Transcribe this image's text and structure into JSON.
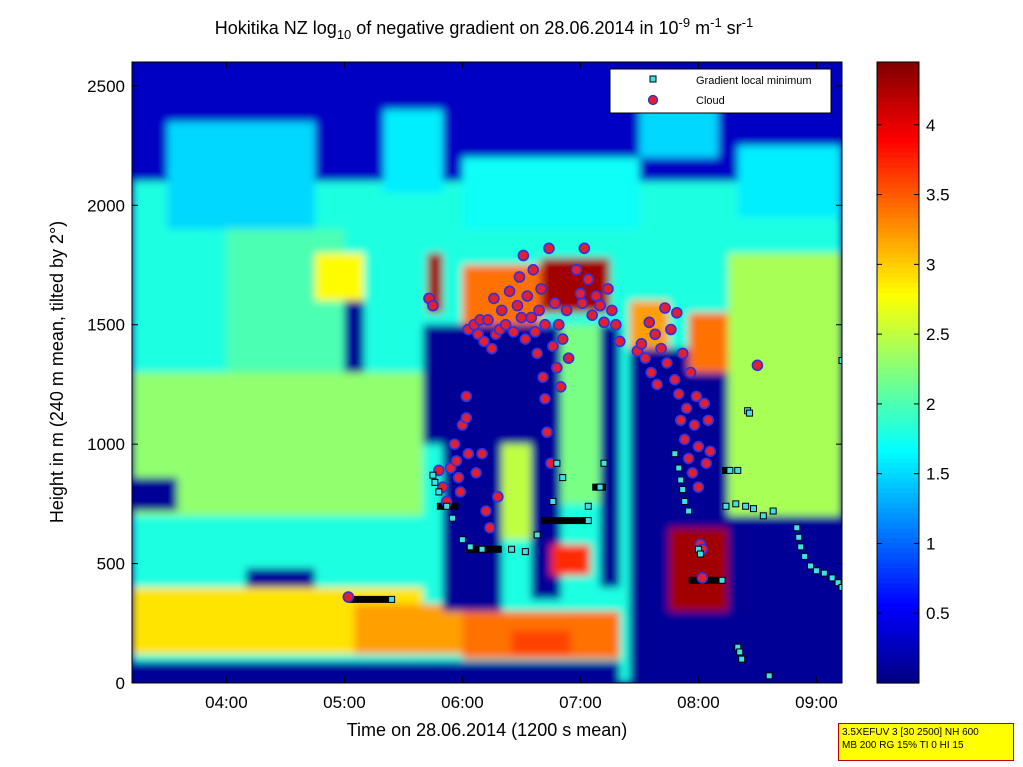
{
  "chart_data": {
    "type": "heatmap",
    "title_parts": {
      "prefix": "Hokitika NZ log",
      "log_sub": "10",
      "middle": " of negative gradient on 28.06.2014 in 10",
      "exp1": "-9",
      "unit1": " m",
      "exp2": "-1",
      "unit2": " sr",
      "exp3": "-1"
    },
    "xlabel": "Time on 28.06.2014 (1200 s mean)",
    "ylabel": "Height in m (240 m mean, tilted by 2°)",
    "x_range": [
      "03:12",
      "09:13"
    ],
    "ylim": [
      0,
      2600
    ],
    "x_ticks": [
      "04:00",
      "05:00",
      "06:00",
      "07:00",
      "08:00",
      "09:00"
    ],
    "y_ticks": [
      0,
      500,
      1000,
      1500,
      2000,
      2500
    ],
    "colorbar": {
      "ticks": [
        0.5,
        1,
        1.5,
        2,
        2.5,
        3,
        3.5,
        4
      ],
      "range": [
        0,
        4.45
      ],
      "colormap": "jet"
    },
    "legend": {
      "placement": "top-right",
      "entries": [
        {
          "label": "Gradient local minimum",
          "marker": "square",
          "color": "#40e0e8"
        },
        {
          "label": "Cloud",
          "marker": "circle",
          "color": "#e02030"
        }
      ]
    },
    "field_regions": [
      {
        "t0": "03:12",
        "t1": "09:13",
        "h0": 0,
        "h1": 2600,
        "value": 1.8
      },
      {
        "t0": "03:12",
        "t1": "09:13",
        "h0": 2100,
        "h1": 2600,
        "value": 0.3
      },
      {
        "t0": "03:30",
        "t1": "04:45",
        "h0": 1900,
        "h1": 2350,
        "value": 1.5
      },
      {
        "t0": "05:20",
        "t1": "05:50",
        "h0": 2050,
        "h1": 2400,
        "value": 1.6
      },
      {
        "t0": "06:00",
        "t1": "07:30",
        "h0": 1900,
        "h1": 2200,
        "value": 1.7
      },
      {
        "t0": "07:30",
        "t1": "08:10",
        "h0": 2200,
        "h1": 2500,
        "value": 1.5
      },
      {
        "t0": "08:20",
        "t1": "09:13",
        "h0": 1950,
        "h1": 2250,
        "value": 1.6
      },
      {
        "t0": "04:00",
        "t1": "05:00",
        "h0": 1200,
        "h1": 1900,
        "value": 2.0
      },
      {
        "t0": "03:12",
        "t1": "05:40",
        "h0": 700,
        "h1": 1300,
        "value": 2.3
      },
      {
        "t0": "04:45",
        "t1": "05:10",
        "h0": 1600,
        "h1": 1800,
        "value": 2.8
      },
      {
        "t0": "05:00",
        "t1": "05:10",
        "h0": 1300,
        "h1": 1600,
        "value": 0.1
      },
      {
        "t0": "03:12",
        "t1": "03:35",
        "h0": 720,
        "h1": 860,
        "value": 0.1
      },
      {
        "t0": "04:10",
        "t1": "04:45",
        "h0": 400,
        "h1": 480,
        "value": 0.1
      },
      {
        "t0": "03:12",
        "t1": "05:40",
        "h0": 120,
        "h1": 400,
        "value": 2.9
      },
      {
        "t0": "05:05",
        "t1": "06:00",
        "h0": 120,
        "h1": 330,
        "value": 3.2
      },
      {
        "t0": "06:00",
        "t1": "07:20",
        "h0": 100,
        "h1": 300,
        "value": 3.4
      },
      {
        "t0": "06:25",
        "t1": "06:55",
        "h0": 120,
        "h1": 220,
        "value": 3.6
      },
      {
        "t0": "03:12",
        "t1": "07:20",
        "h0": 0,
        "h1": 90,
        "value": 0.1
      },
      {
        "t0": "05:40",
        "t1": "06:40",
        "h0": 1000,
        "h1": 1500,
        "value": 0.1
      },
      {
        "t0": "05:50",
        "t1": "06:20",
        "h0": 300,
        "h1": 1000,
        "value": 0.1
      },
      {
        "t0": "06:20",
        "t1": "06:35",
        "h0": 600,
        "h1": 1000,
        "value": 2.5
      },
      {
        "t0": "06:35",
        "t1": "06:50",
        "h0": 350,
        "h1": 1500,
        "value": 0.1
      },
      {
        "t0": "06:50",
        "t1": "07:10",
        "h0": 750,
        "h1": 1500,
        "value": 2.2
      },
      {
        "t0": "07:10",
        "t1": "07:20",
        "h0": 400,
        "h1": 1500,
        "value": 0.1
      },
      {
        "t0": "06:45",
        "t1": "07:05",
        "h0": 450,
        "h1": 580,
        "value": 3.7
      },
      {
        "t0": "05:42",
        "t1": "05:50",
        "h0": 1550,
        "h1": 1800,
        "value": 4.3
      },
      {
        "t0": "06:00",
        "t1": "06:40",
        "h0": 1500,
        "h1": 1750,
        "value": 3.4
      },
      {
        "t0": "06:40",
        "t1": "07:15",
        "h0": 1550,
        "h1": 1780,
        "value": 4.3
      },
      {
        "t0": "07:25",
        "t1": "08:15",
        "h0": 0,
        "h1": 1400,
        "value": 0.1
      },
      {
        "t0": "07:25",
        "t1": "07:45",
        "h0": 1400,
        "h1": 1600,
        "value": 3.2
      },
      {
        "t0": "07:55",
        "t1": "08:15",
        "h0": 1300,
        "h1": 1550,
        "value": 3.4
      },
      {
        "t0": "07:45",
        "t1": "08:15",
        "h0": 300,
        "h1": 650,
        "value": 4.3
      },
      {
        "t0": "08:15",
        "t1": "09:13",
        "h0": 0,
        "h1": 700,
        "value": 0.1
      },
      {
        "t0": "08:15",
        "t1": "09:13",
        "h0": 700,
        "h1": 1800,
        "value": 2.4
      }
    ],
    "gradient_local_minimum": [
      {
        "t": "05:24",
        "h": 350
      },
      {
        "t": "05:45",
        "h": 870
      },
      {
        "t": "05:46",
        "h": 840
      },
      {
        "t": "05:48",
        "h": 800
      },
      {
        "t": "05:52",
        "h": 740
      },
      {
        "t": "05:55",
        "h": 690
      },
      {
        "t": "06:00",
        "h": 600
      },
      {
        "t": "06:04",
        "h": 570
      },
      {
        "t": "06:10",
        "h": 560
      },
      {
        "t": "06:25",
        "h": 560
      },
      {
        "t": "06:32",
        "h": 550
      },
      {
        "t": "06:38",
        "h": 620
      },
      {
        "t": "06:46",
        "h": 760
      },
      {
        "t": "06:48",
        "h": 920
      },
      {
        "t": "06:51",
        "h": 860
      },
      {
        "t": "07:04",
        "h": 680
      },
      {
        "t": "07:04",
        "h": 740
      },
      {
        "t": "07:10",
        "h": 820
      },
      {
        "t": "07:12",
        "h": 920
      },
      {
        "t": "07:48",
        "h": 960
      },
      {
        "t": "07:50",
        "h": 900
      },
      {
        "t": "07:51",
        "h": 850
      },
      {
        "t": "07:52",
        "h": 810
      },
      {
        "t": "07:53",
        "h": 760
      },
      {
        "t": "07:55",
        "h": 720
      },
      {
        "t": "08:00",
        "h": 560
      },
      {
        "t": "08:01",
        "h": 540
      },
      {
        "t": "08:12",
        "h": 430
      },
      {
        "t": "08:14",
        "h": 740
      },
      {
        "t": "08:16",
        "h": 890
      },
      {
        "t": "08:20",
        "h": 890
      },
      {
        "t": "08:19",
        "h": 750
      },
      {
        "t": "08:20",
        "h": 150
      },
      {
        "t": "08:21",
        "h": 130
      },
      {
        "t": "08:22",
        "h": 100
      },
      {
        "t": "08:24",
        "h": 740
      },
      {
        "t": "08:25",
        "h": 1140
      },
      {
        "t": "08:26",
        "h": 1130
      },
      {
        "t": "08:28",
        "h": 730
      },
      {
        "t": "08:33",
        "h": 700
      },
      {
        "t": "08:36",
        "h": 30
      },
      {
        "t": "08:38",
        "h": 720
      },
      {
        "t": "08:50",
        "h": 650
      },
      {
        "t": "08:51",
        "h": 610
      },
      {
        "t": "08:52",
        "h": 570
      },
      {
        "t": "08:54",
        "h": 530
      },
      {
        "t": "08:57",
        "h": 490
      },
      {
        "t": "09:00",
        "h": 470
      },
      {
        "t": "09:04",
        "h": 460
      },
      {
        "t": "09:08",
        "h": 440
      },
      {
        "t": "09:11",
        "h": 420
      },
      {
        "t": "09:13",
        "h": 400
      },
      {
        "t": "09:13",
        "h": 1350
      }
    ],
    "cloud": [
      {
        "t": "05:02",
        "h": 360
      },
      {
        "t": "05:43",
        "h": 1610
      },
      {
        "t": "05:45",
        "h": 1580
      },
      {
        "t": "05:48",
        "h": 890
      },
      {
        "t": "05:50",
        "h": 820
      },
      {
        "t": "05:52",
        "h": 760
      },
      {
        "t": "05:54",
        "h": 900
      },
      {
        "t": "05:56",
        "h": 1000
      },
      {
        "t": "05:57",
        "h": 930
      },
      {
        "t": "05:58",
        "h": 860
      },
      {
        "t": "05:59",
        "h": 800
      },
      {
        "t": "06:00",
        "h": 1080
      },
      {
        "t": "06:02",
        "h": 1200
      },
      {
        "t": "06:02",
        "h": 1110
      },
      {
        "t": "06:03",
        "h": 960
      },
      {
        "t": "06:03",
        "h": 1480
      },
      {
        "t": "06:06",
        "h": 1500
      },
      {
        "t": "06:07",
        "h": 880
      },
      {
        "t": "06:08",
        "h": 1460
      },
      {
        "t": "06:09",
        "h": 1520
      },
      {
        "t": "06:10",
        "h": 960
      },
      {
        "t": "06:11",
        "h": 1430
      },
      {
        "t": "06:12",
        "h": 720
      },
      {
        "t": "06:13",
        "h": 1520
      },
      {
        "t": "06:14",
        "h": 650
      },
      {
        "t": "06:15",
        "h": 1400
      },
      {
        "t": "06:16",
        "h": 1610
      },
      {
        "t": "06:17",
        "h": 1460
      },
      {
        "t": "06:18",
        "h": 780
      },
      {
        "t": "06:19",
        "h": 1480
      },
      {
        "t": "06:20",
        "h": 1560
      },
      {
        "t": "06:22",
        "h": 1500
      },
      {
        "t": "06:24",
        "h": 1640
      },
      {
        "t": "06:26",
        "h": 1470
      },
      {
        "t": "06:28",
        "h": 1580
      },
      {
        "t": "06:29",
        "h": 1700
      },
      {
        "t": "06:30",
        "h": 1530
      },
      {
        "t": "06:31",
        "h": 1790
      },
      {
        "t": "06:32",
        "h": 1440
      },
      {
        "t": "06:33",
        "h": 1620
      },
      {
        "t": "06:35",
        "h": 1530
      },
      {
        "t": "06:36",
        "h": 1730
      },
      {
        "t": "06:37",
        "h": 1470
      },
      {
        "t": "06:38",
        "h": 1380
      },
      {
        "t": "06:39",
        "h": 1560
      },
      {
        "t": "06:40",
        "h": 1650
      },
      {
        "t": "06:41",
        "h": 1280
      },
      {
        "t": "06:42",
        "h": 1190
      },
      {
        "t": "06:42",
        "h": 1500
      },
      {
        "t": "06:43",
        "h": 1050
      },
      {
        "t": "06:44",
        "h": 1820
      },
      {
        "t": "06:45",
        "h": 920
      },
      {
        "t": "06:46",
        "h": 1410
      },
      {
        "t": "06:47",
        "h": 1590
      },
      {
        "t": "06:48",
        "h": 1320
      },
      {
        "t": "06:49",
        "h": 1500
      },
      {
        "t": "06:50",
        "h": 1240
      },
      {
        "t": "06:51",
        "h": 1440
      },
      {
        "t": "06:53",
        "h": 1560
      },
      {
        "t": "06:54",
        "h": 1360
      },
      {
        "t": "06:58",
        "h": 1730
      },
      {
        "t": "07:00",
        "h": 1630
      },
      {
        "t": "07:01",
        "h": 1590
      },
      {
        "t": "07:02",
        "h": 1820
      },
      {
        "t": "07:04",
        "h": 1690
      },
      {
        "t": "07:06",
        "h": 1540
      },
      {
        "t": "07:08",
        "h": 1620
      },
      {
        "t": "07:10",
        "h": 1580
      },
      {
        "t": "07:12",
        "h": 1510
      },
      {
        "t": "07:14",
        "h": 1650
      },
      {
        "t": "07:16",
        "h": 1560
      },
      {
        "t": "07:18",
        "h": 1500
      },
      {
        "t": "07:20",
        "h": 1430
      },
      {
        "t": "07:29",
        "h": 1390
      },
      {
        "t": "07:31",
        "h": 1420
      },
      {
        "t": "07:33",
        "h": 1360
      },
      {
        "t": "07:35",
        "h": 1510
      },
      {
        "t": "07:36",
        "h": 1300
      },
      {
        "t": "07:38",
        "h": 1460
      },
      {
        "t": "07:39",
        "h": 1250
      },
      {
        "t": "07:41",
        "h": 1400
      },
      {
        "t": "07:43",
        "h": 1570
      },
      {
        "t": "07:44",
        "h": 1340
      },
      {
        "t": "07:46",
        "h": 1480
      },
      {
        "t": "07:48",
        "h": 1270
      },
      {
        "t": "07:49",
        "h": 1550
      },
      {
        "t": "07:50",
        "h": 1210
      },
      {
        "t": "07:51",
        "h": 1100
      },
      {
        "t": "07:52",
        "h": 1380
      },
      {
        "t": "07:53",
        "h": 1020
      },
      {
        "t": "07:54",
        "h": 1150
      },
      {
        "t": "07:55",
        "h": 940
      },
      {
        "t": "07:56",
        "h": 1300
      },
      {
        "t": "07:57",
        "h": 880
      },
      {
        "t": "07:58",
        "h": 1080
      },
      {
        "t": "07:59",
        "h": 1200
      },
      {
        "t": "08:00",
        "h": 990
      },
      {
        "t": "08:00",
        "h": 820
      },
      {
        "t": "08:01",
        "h": 580
      },
      {
        "t": "08:02",
        "h": 560
      },
      {
        "t": "08:02",
        "h": 440
      },
      {
        "t": "08:03",
        "h": 1170
      },
      {
        "t": "08:04",
        "h": 920
      },
      {
        "t": "08:05",
        "h": 1100
      },
      {
        "t": "08:06",
        "h": 970
      },
      {
        "t": "08:30",
        "h": 1330
      }
    ],
    "bars": [
      {
        "t0": "05:02",
        "t1": "05:23",
        "h": 350
      },
      {
        "t0": "05:47",
        "t1": "05:58",
        "h": 740
      },
      {
        "t0": "06:02",
        "t1": "06:20",
        "h": 560
      },
      {
        "t0": "06:40",
        "t1": "07:04",
        "h": 680
      },
      {
        "t0": "07:06",
        "t1": "07:13",
        "h": 820
      },
      {
        "t0": "07:55",
        "t1": "08:11",
        "h": 430
      },
      {
        "t0": "08:12",
        "t1": "08:17",
        "h": 890
      }
    ]
  },
  "info_box": {
    "line1": "3.5XEFUV 3 [30 2500] NH 600",
    "line2": "MB 200 RG 15% TI 0 HI 15"
  }
}
